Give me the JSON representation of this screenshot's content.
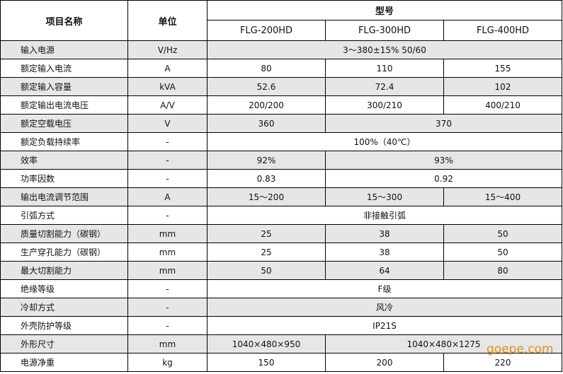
{
  "header": {
    "item": "项目名称",
    "unit": "单位",
    "model": "型号",
    "models": [
      "FLG-200HD",
      "FLG-300HD",
      "FLG-400HD"
    ]
  },
  "rows": [
    {
      "name": "输入电源",
      "unit": "V/Hz",
      "cells": [
        {
          "t": "3～380±15%  50/60",
          "s": 3
        }
      ]
    },
    {
      "name": "额定输入电流",
      "unit": "A",
      "cells": [
        {
          "t": "80",
          "s": 1
        },
        {
          "t": "110",
          "s": 1
        },
        {
          "t": "155",
          "s": 1
        }
      ]
    },
    {
      "name": "额定输入容量",
      "unit": "kVA",
      "cells": [
        {
          "t": "52.6",
          "s": 1
        },
        {
          "t": "72.4",
          "s": 1
        },
        {
          "t": "102",
          "s": 1
        }
      ]
    },
    {
      "name": "额定输出电流电压",
      "unit": "A/V",
      "cells": [
        {
          "t": "200/200",
          "s": 1
        },
        {
          "t": "300/210",
          "s": 1
        },
        {
          "t": "400/210",
          "s": 1
        }
      ]
    },
    {
      "name": "额定空载电压",
      "unit": "V",
      "cells": [
        {
          "t": "360",
          "s": 1
        },
        {
          "t": "370",
          "s": 2
        }
      ]
    },
    {
      "name": "额定负载持续率",
      "unit": "-",
      "cells": [
        {
          "t": "100%（40℃）",
          "s": 3
        }
      ]
    },
    {
      "name": "效率",
      "unit": "-",
      "cells": [
        {
          "t": "92%",
          "s": 1
        },
        {
          "t": "93%",
          "s": 2
        }
      ]
    },
    {
      "name": "功率因数",
      "unit": "-",
      "cells": [
        {
          "t": "0.83",
          "s": 1
        },
        {
          "t": "0.92",
          "s": 2
        }
      ]
    },
    {
      "name": "输出电流调节范围",
      "unit": "A",
      "cells": [
        {
          "t": "15～200",
          "s": 1
        },
        {
          "t": "15～300",
          "s": 1
        },
        {
          "t": "15～400",
          "s": 1
        }
      ]
    },
    {
      "name": "引弧方式",
      "unit": "-",
      "cells": [
        {
          "t": "非接触引弧",
          "s": 3
        }
      ]
    },
    {
      "name": "质量切割能力（碳钢）",
      "unit": "mm",
      "cells": [
        {
          "t": "25",
          "s": 1
        },
        {
          "t": "38",
          "s": 1
        },
        {
          "t": "50",
          "s": 1
        }
      ]
    },
    {
      "name": "生产穿孔能力（碳钢）",
      "unit": "mm",
      "cells": [
        {
          "t": "25",
          "s": 1
        },
        {
          "t": "38",
          "s": 1
        },
        {
          "t": "50",
          "s": 1
        }
      ]
    },
    {
      "name": "最大切割能力",
      "unit": "mm",
      "cells": [
        {
          "t": "50",
          "s": 1
        },
        {
          "t": "64",
          "s": 1
        },
        {
          "t": "80",
          "s": 1
        }
      ]
    },
    {
      "name": "绝缘等级",
      "unit": "-",
      "cells": [
        {
          "t": "F级",
          "s": 3
        }
      ]
    },
    {
      "name": "冷却方式",
      "unit": "-",
      "cells": [
        {
          "t": "风冷",
          "s": 3
        }
      ]
    },
    {
      "name": "外壳防护等级",
      "unit": "-",
      "cells": [
        {
          "t": "IP21S",
          "s": 3
        }
      ]
    },
    {
      "name": "外形尺寸",
      "unit": "mm",
      "cells": [
        {
          "t": "1040×480×950",
          "s": 1
        },
        {
          "t": "1040×480×1275",
          "s": 2
        }
      ]
    },
    {
      "name": "电源净重",
      "unit": "kg",
      "cells": [
        {
          "t": "150",
          "s": 1
        },
        {
          "t": "200",
          "s": 1
        },
        {
          "t": "220",
          "s": 1
        }
      ]
    }
  ],
  "watermark": "goepe.com",
  "colors": {
    "alt_row": "#e6e6e6",
    "watermark": "#e08a00"
  }
}
